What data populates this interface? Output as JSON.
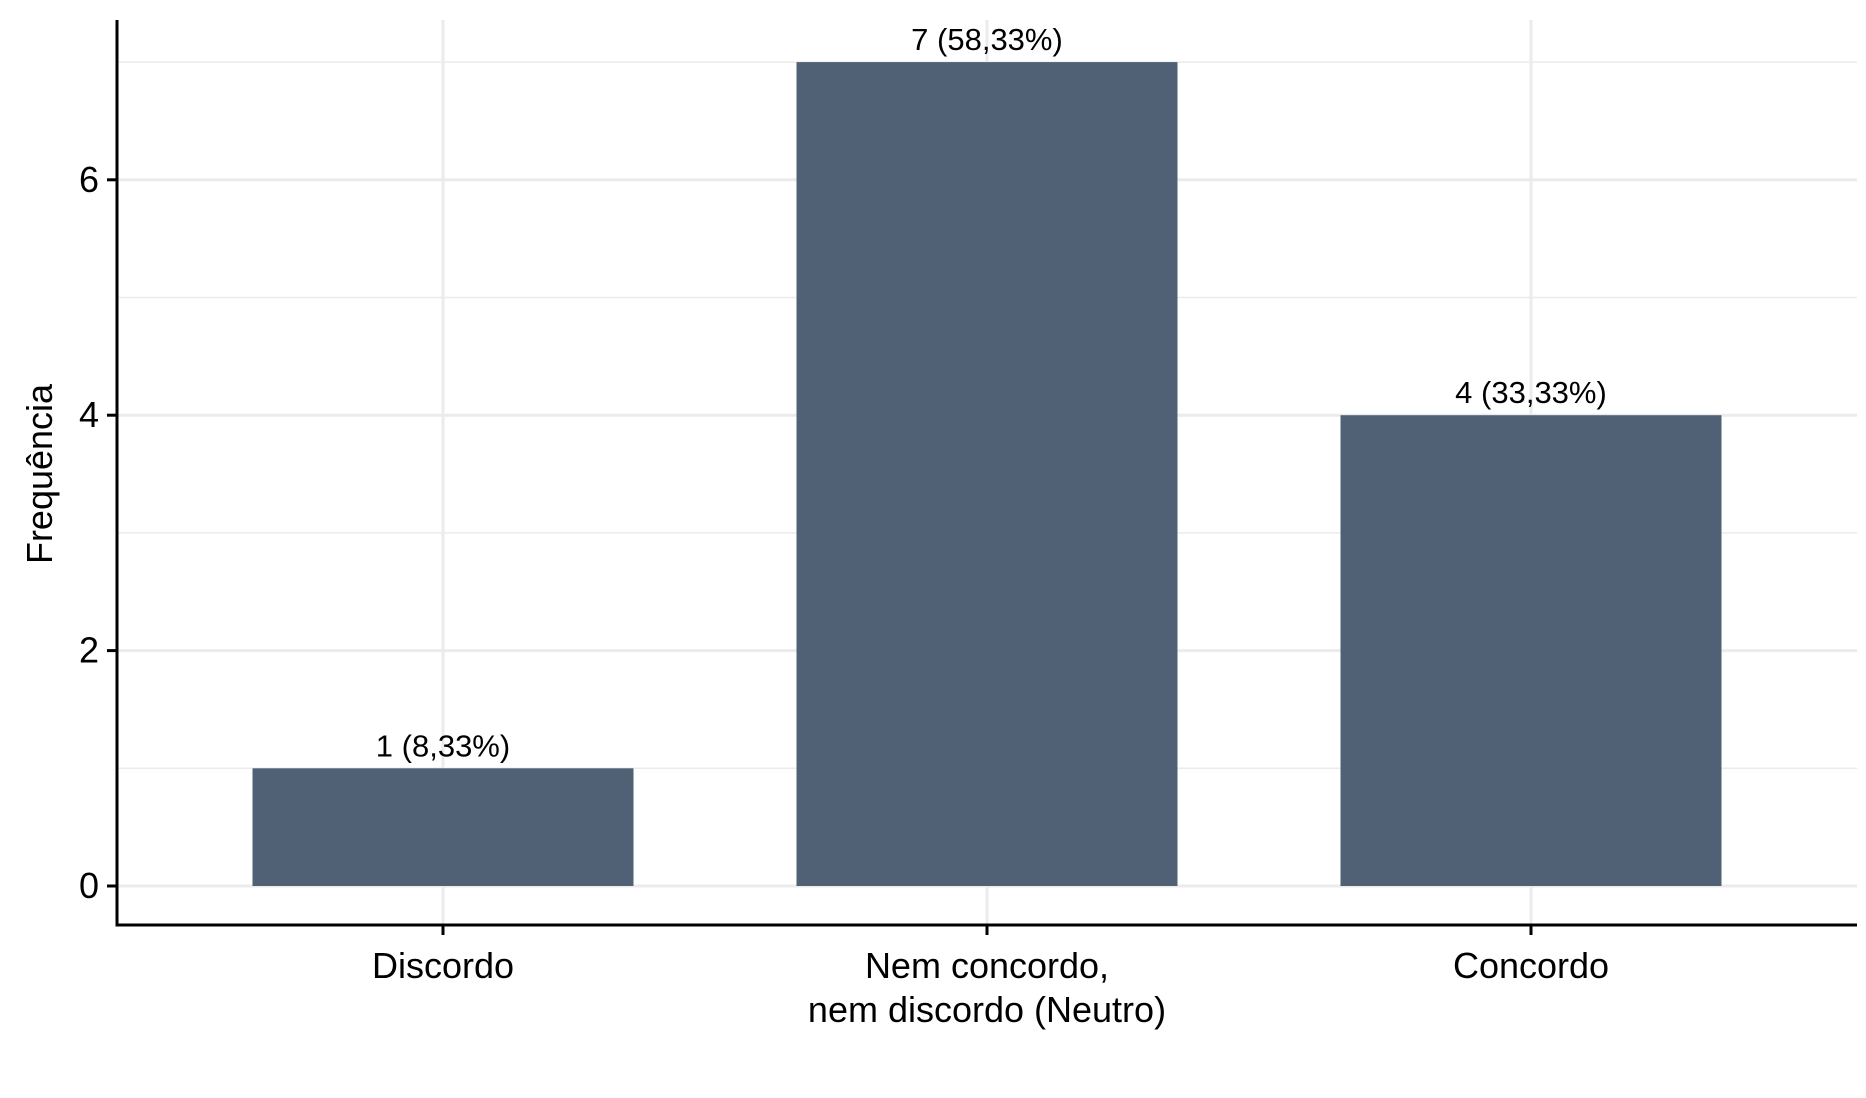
{
  "chart_data": {
    "type": "bar",
    "categories": [
      "Discordo",
      "Nem concordo,\nnem discordo (Neutro)",
      "Concordo"
    ],
    "values": [
      1,
      7,
      4
    ],
    "data_labels": [
      "1 (8,33%)",
      "7 (58,33%)",
      "4 (33,33%)"
    ],
    "ylabel": "Frequência",
    "xlabel": "",
    "ylim": [
      0,
      7.34
    ],
    "yticks": [
      0,
      2,
      4,
      6
    ],
    "grid": true,
    "legend": "none",
    "colors": {
      "bar": "#506075",
      "grid": "#ebebeb",
      "axis": "#000000"
    }
  }
}
